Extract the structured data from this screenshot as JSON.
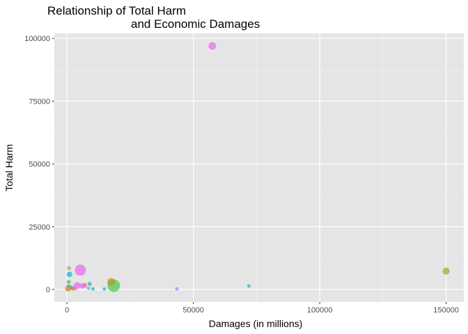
{
  "chart_data": {
    "type": "scatter",
    "title_lines": [
      "Relationship of Total Harm",
      "and Economic Damages"
    ],
    "xlabel": "Damages (in millions)",
    "ylabel": "Total Harm",
    "xlim": [
      -5000,
      157000
    ],
    "ylim": [
      -5000,
      102000
    ],
    "x_ticks": [
      0,
      50000,
      100000,
      150000
    ],
    "x_tick_labels": [
      "0",
      "50000",
      "100000",
      "150000"
    ],
    "y_ticks": [
      0,
      25000,
      50000,
      75000,
      100000
    ],
    "y_tick_labels": [
      "0",
      "25000",
      "50000",
      "75000",
      "100000"
    ],
    "background_color": "#e5e5e5",
    "grid": true,
    "legend": "none",
    "points": [
      {
        "x": 57500,
        "y": 97000,
        "size": 5.5,
        "color": "#e56ded"
      },
      {
        "x": 150000,
        "y": 7300,
        "size": 5,
        "color": "#a3a428"
      },
      {
        "x": 72000,
        "y": 1400,
        "size": 2.5,
        "color": "#19b7d2"
      },
      {
        "x": 43500,
        "y": 200,
        "size": 2.5,
        "color": "#8a94ee"
      },
      {
        "x": 18500,
        "y": 1500,
        "size": 9,
        "color": "#4cc84c"
      },
      {
        "x": 17500,
        "y": 3000,
        "size": 5.5,
        "color": "#b39a22"
      },
      {
        "x": 14800,
        "y": 200,
        "size": 2.5,
        "color": "#19b7d2"
      },
      {
        "x": 10300,
        "y": 200,
        "size": 2.5,
        "color": "#19b7d2"
      },
      {
        "x": 9000,
        "y": 2200,
        "size": 3,
        "color": "#19b7d2"
      },
      {
        "x": 8500,
        "y": 500,
        "size": 2.5,
        "color": "#8a94ee"
      },
      {
        "x": 7000,
        "y": 1600,
        "size": 3.5,
        "color": "#ef6f6a"
      },
      {
        "x": 6000,
        "y": 1400,
        "size": 4,
        "color": "#e56ded"
      },
      {
        "x": 5300,
        "y": 7700,
        "size": 8,
        "color": "#e56ded"
      },
      {
        "x": 4000,
        "y": 1600,
        "size": 5,
        "color": "#e56ded"
      },
      {
        "x": 3200,
        "y": 400,
        "size": 3,
        "color": "#e56ded"
      },
      {
        "x": 2500,
        "y": 200,
        "size": 2.5,
        "color": "#a3a428"
      },
      {
        "x": 1800,
        "y": 800,
        "size": 3,
        "color": "#4cc84c"
      },
      {
        "x": 1200,
        "y": 600,
        "size": 3.5,
        "color": "#ef6f6a"
      },
      {
        "x": 1000,
        "y": 6000,
        "size": 4,
        "color": "#19b7d2"
      },
      {
        "x": 800,
        "y": 8500,
        "size": 3,
        "color": "#c49a6c"
      },
      {
        "x": 700,
        "y": 3000,
        "size": 3,
        "color": "#4cc84c"
      },
      {
        "x": 600,
        "y": 1200,
        "size": 3,
        "color": "#19b7d2"
      },
      {
        "x": 400,
        "y": 300,
        "size": 4,
        "color": "#ef6f6a"
      },
      {
        "x": 200,
        "y": 150,
        "size": 3,
        "color": "#d9a23a"
      }
    ]
  }
}
